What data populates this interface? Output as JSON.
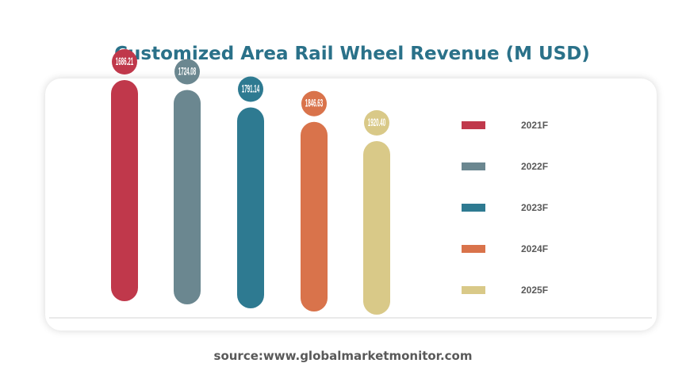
{
  "chart_data": {
    "type": "bar",
    "title": "Customized Area Rail Wheel Revenue (M USD)",
    "categories": [
      "2021F",
      "2022F",
      "2023F",
      "2024F",
      "2025F"
    ],
    "values": [
      1686.21,
      1724.08,
      1791.14,
      1846.63,
      1920.4
    ],
    "value_labels": [
      "1686.21",
      "1724.08",
      "1791.14",
      "1846.63",
      "1920.40"
    ],
    "colors": [
      "#c0384b",
      "#6b8790",
      "#2e7a91",
      "#d9734b",
      "#d9c988"
    ],
    "legend_placement": "right",
    "grid": false
  },
  "footer": {
    "source": "source:www.globalmarketmonitor.com"
  }
}
